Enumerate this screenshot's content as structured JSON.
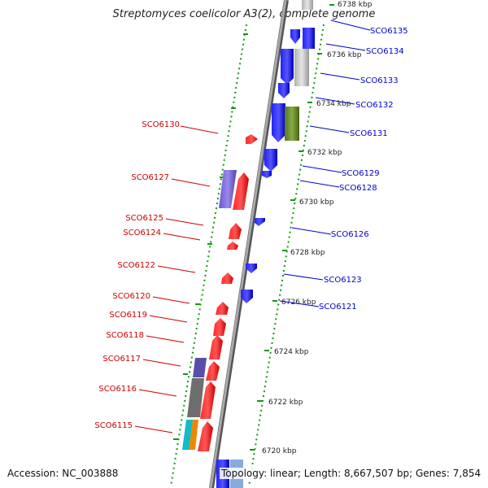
{
  "title": "Streptomyces coelicolor A3(2), complete genome",
  "footer": {
    "accession": "Accession: NC_003888",
    "summary": "Topology: linear; Length: 8,667,507 bp; Genes: 7,854"
  },
  "colors": {
    "plus_strand": "#ee0000",
    "minus_strand": "#0000ee",
    "axis": "#808080",
    "tick_green": "#119911",
    "label_red": "#cc0000",
    "label_blue": "#0000cc"
  },
  "scale_labels": [
    "6738 kbp",
    "6736 kbp",
    "6734 kbp",
    "6732 kbp",
    "6730 kbp",
    "6728 kbp",
    "6726 kbp",
    "6724 kbp",
    "6722 kbp",
    "6720 kbp"
  ],
  "left_genes": [
    "SCO6130",
    "SCO6127",
    "SCO6125",
    "SCO6124",
    "SCO6122",
    "SCO6120",
    "SCO6119",
    "SCO6118",
    "SCO6117",
    "SCO6116",
    "SCO6115"
  ],
  "right_genes": [
    "SCO6135",
    "SCO6134",
    "SCO6133",
    "SCO6132",
    "SCO6131",
    "SCO6129",
    "SCO6128",
    "SCO6126",
    "SCO6123",
    "SCO6121"
  ]
}
